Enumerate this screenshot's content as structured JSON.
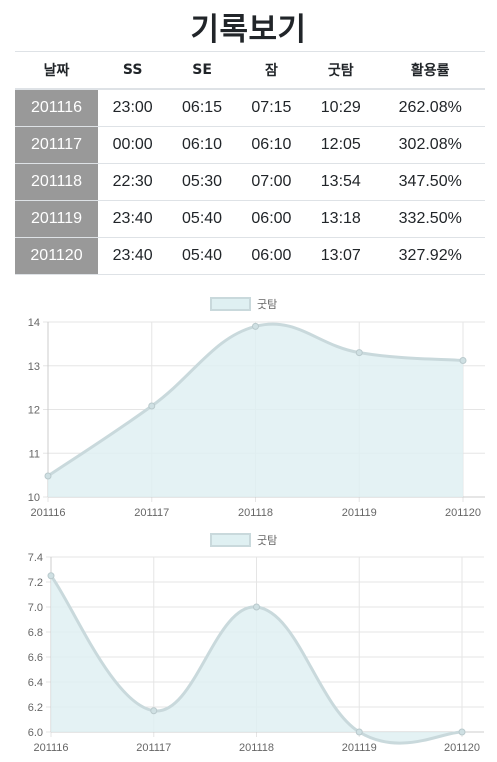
{
  "page": {
    "title": "기록보기"
  },
  "table": {
    "headers": [
      "날짜",
      "SS",
      "SE",
      "잠",
      "굿탐",
      "활용률"
    ],
    "rows": [
      [
        "201116",
        "23:00",
        "06:15",
        "07:15",
        "10:29",
        "262.08%"
      ],
      [
        "201117",
        "00:00",
        "06:10",
        "06:10",
        "12:05",
        "302.08%"
      ],
      [
        "201118",
        "22:30",
        "05:30",
        "07:00",
        "13:54",
        "347.50%"
      ],
      [
        "201119",
        "23:40",
        "05:40",
        "06:00",
        "13:18",
        "332.50%"
      ],
      [
        "201120",
        "23:40",
        "05:40",
        "06:00",
        "13:07",
        "327.92%"
      ]
    ]
  },
  "chart_data": [
    {
      "type": "area",
      "categories": [
        "201116",
        "201117",
        "201118",
        "201119",
        "201120"
      ],
      "series": [
        {
          "name": "굿탐",
          "values": [
            10.48,
            12.08,
            13.9,
            13.3,
            13.12
          ]
        }
      ],
      "ylim": [
        10,
        14
      ],
      "yticks": [
        "10",
        "11",
        "12",
        "13",
        "14"
      ],
      "grid": true,
      "legend": "top",
      "colors": {
        "fill": "#dff0f2",
        "line": "#c9d9dc",
        "point": "#cfe0e3"
      }
    },
    {
      "type": "area",
      "categories": [
        "201116",
        "201117",
        "201118",
        "201119",
        "201120"
      ],
      "series": [
        {
          "name": "굿탐",
          "values": [
            7.25,
            6.17,
            7.0,
            6.0,
            6.0
          ]
        }
      ],
      "ylim": [
        6.0,
        7.4
      ],
      "yticks": [
        "6.0",
        "6.2",
        "6.4",
        "6.6",
        "6.8",
        "7.0",
        "7.2",
        "7.4"
      ],
      "grid": true,
      "legend": "top",
      "colors": {
        "fill": "#dff0f2",
        "line": "#c9d9dc",
        "point": "#cfe0e3"
      }
    }
  ]
}
